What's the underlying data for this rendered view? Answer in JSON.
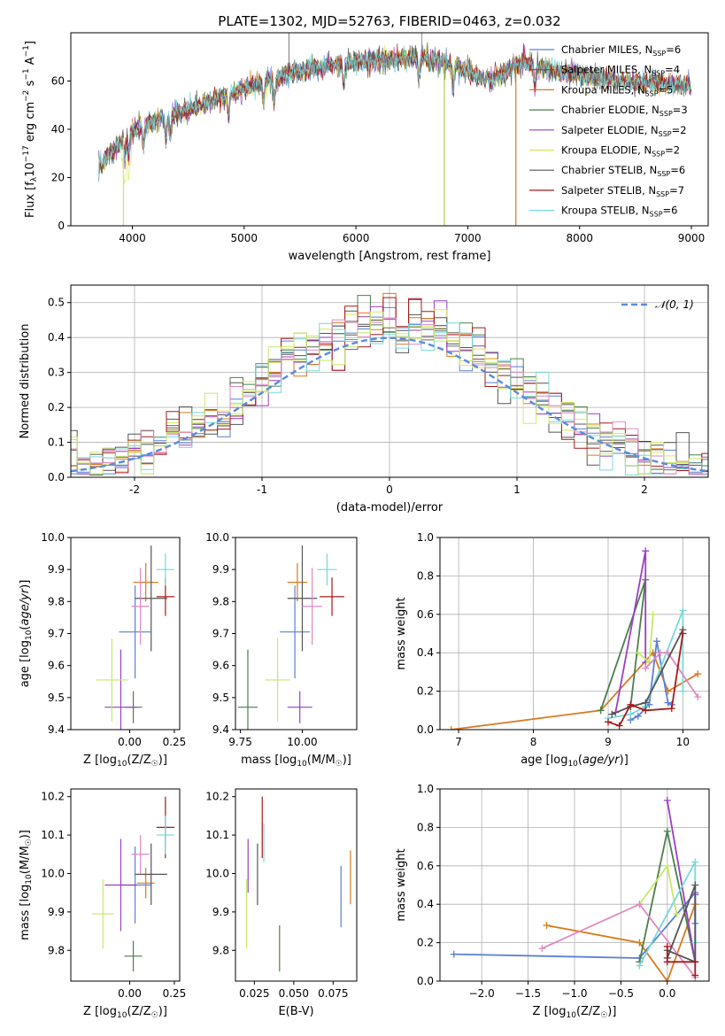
{
  "figure_title": "PLATE=1302, MJD=52763, FIBERID=0463, z=0.032",
  "models": [
    {
      "name": "Chabrier MILES",
      "nssp": "6",
      "color": "#5B7FD6"
    },
    {
      "name": "Salpeter MILES",
      "nssp": "4",
      "color": "#555555"
    },
    {
      "name": "Kroupa MILES",
      "nssp": "5",
      "color": "#D97A1E"
    },
    {
      "name": "Chabrier ELODIE",
      "nssp": "3",
      "color": "#4C7E4C"
    },
    {
      "name": "Salpeter ELODIE",
      "nssp": "2",
      "color": "#9B3FC0"
    },
    {
      "name": "Kroupa ELODIE",
      "nssp": "2",
      "color": "#D8E85C"
    },
    {
      "name": "Chabrier STELIB",
      "nssp": "6",
      "color": "#555555"
    },
    {
      "name": "Salpeter STELIB",
      "nssp": "7",
      "color": "#A81818"
    },
    {
      "name": "Kroupa STELIB",
      "nssp": "6",
      "color": "#76D9DD"
    }
  ],
  "extra_colors": {
    "pink": "#E088C0",
    "lightgreen": "#C7E86A"
  },
  "chart_data": [
    {
      "id": "spectrum",
      "type": "line",
      "xlabel": "wavelength [Angstrom, rest frame]",
      "ylabel": "Flux [f_λ 10^-17 erg cm^-2 s^-1 A^-1]",
      "xlim": [
        3450,
        9150
      ],
      "ylim": [
        0,
        80
      ],
      "xticks": [
        4000,
        5000,
        6000,
        7000,
        8000,
        9000
      ],
      "yticks": [
        0,
        20,
        40,
        60
      ],
      "grid": false,
      "legend": "right, inside",
      "continuum": {
        "x": [
          3700,
          3800,
          3950,
          4100,
          4300,
          4600,
          4900,
          5200,
          5500,
          5800,
          6000,
          6300,
          6600,
          6900,
          7200,
          7500,
          7800,
          8100,
          8400,
          8700,
          9000
        ],
        "y": [
          25,
          30,
          38,
          42,
          45,
          50,
          55,
          60,
          64,
          67,
          68,
          69,
          70,
          66,
          60,
          68,
          64,
          62,
          60,
          59,
          58
        ]
      },
      "dropouts": [
        {
          "x": 3920,
          "ymin": 0
        },
        {
          "x": 6790,
          "ymin": 0
        },
        {
          "x": 7430,
          "ymin": 0
        }
      ]
    },
    {
      "id": "residuals",
      "type": "step-histogram",
      "xlabel": "(data-model)/error",
      "ylabel": "Normed distribution",
      "xlim": [
        -2.5,
        2.5
      ],
      "ylim": [
        0,
        0.55
      ],
      "xticks": [
        -2,
        -1,
        0,
        1,
        2
      ],
      "yticks": [
        0.0,
        0.1,
        0.2,
        0.3,
        0.4,
        0.5
      ],
      "grid": true,
      "legend": "upper right",
      "bin_width": 0.1,
      "legend_label": "𝒩(0, 1)",
      "gaussian": {
        "mu": 0,
        "sigma": 1
      }
    },
    {
      "id": "Z_age",
      "type": "errorbar",
      "xlabel": "Z [log10(Z/Z☉)]",
      "ylabel": "age  [log10(age/yr)]",
      "xlim": [
        -0.33,
        0.28
      ],
      "ylim": [
        9.4,
        10.0
      ],
      "xticks": [
        0.0,
        0.25
      ],
      "xticklabels": [
        "0.00",
        "0.25"
      ],
      "yticks": [
        9.4,
        9.5,
        9.6,
        9.7,
        9.8,
        9.9,
        10.0
      ],
      "points": [
        {
          "c": "#5B7FD6",
          "x": 0.03,
          "xe": 0.09,
          "y": 9.705,
          "ye": 0.145
        },
        {
          "c": "#D97A1E",
          "x": 0.09,
          "xe": 0.07,
          "y": 9.86,
          "ye": 0.06
        },
        {
          "c": "#4C7E4C",
          "x": 0.02,
          "xe": 0.05,
          "y": 9.47,
          "ye": 0.05
        },
        {
          "c": "#9B3FC0",
          "x": -0.05,
          "xe": 0.09,
          "y": 9.47,
          "ye": 0.18
        },
        {
          "c": "#C7E86A",
          "x": -0.1,
          "xe": 0.09,
          "y": 9.555,
          "ye": 0.13
        },
        {
          "c": "#555555",
          "x": 0.12,
          "xe": 0.09,
          "y": 9.81,
          "ye": 0.165
        },
        {
          "c": "#A81818",
          "x": 0.2,
          "xe": 0.05,
          "y": 9.815,
          "ye": 0.06
        },
        {
          "c": "#76D9DD",
          "x": 0.2,
          "xe": 0.05,
          "y": 9.9,
          "ye": 0.05
        },
        {
          "c": "#E088C0",
          "x": 0.06,
          "xe": 0.05,
          "y": 9.785,
          "ye": 0.12
        }
      ]
    },
    {
      "id": "mass_age",
      "type": "errorbar",
      "xlabel": "mass [log10(M/M☉)]",
      "ylabel": "",
      "xlim": [
        9.73,
        10.22
      ],
      "ylim": [
        9.4,
        10.0
      ],
      "xticks": [
        9.75,
        10.0
      ],
      "xticklabels": [
        "9.75",
        "10.00"
      ],
      "yticks": [
        9.4,
        9.5,
        9.6,
        9.7,
        9.8,
        9.9,
        10.0
      ],
      "points": [
        {
          "c": "#5B7FD6",
          "x": 9.97,
          "xe": 0.06,
          "y": 9.705,
          "ye": 0.145
        },
        {
          "c": "#D97A1E",
          "x": 9.98,
          "xe": 0.04,
          "y": 9.86,
          "ye": 0.06
        },
        {
          "c": "#4C7E4C",
          "x": 9.78,
          "xe": 0.04,
          "y": 9.47,
          "ye": 0.18
        },
        {
          "c": "#9B3FC0",
          "x": 9.99,
          "xe": 0.05,
          "y": 9.47,
          "ye": 0.05
        },
        {
          "c": "#C7E86A",
          "x": 9.9,
          "xe": 0.05,
          "y": 9.555,
          "ye": 0.13
        },
        {
          "c": "#555555",
          "x": 10.0,
          "xe": 0.06,
          "y": 9.81,
          "ye": 0.165
        },
        {
          "c": "#A81818",
          "x": 10.12,
          "xe": 0.05,
          "y": 9.815,
          "ye": 0.06
        },
        {
          "c": "#76D9DD",
          "x": 10.1,
          "xe": 0.04,
          "y": 9.9,
          "ye": 0.05
        },
        {
          "c": "#E088C0",
          "x": 10.04,
          "xe": 0.04,
          "y": 9.785,
          "ye": 0.12
        }
      ]
    },
    {
      "id": "age_weight",
      "type": "line",
      "xlabel": "age  [log10(age/yr)]",
      "ylabel": "mass weight",
      "xlim": [
        6.75,
        10.35
      ],
      "ylim": [
        0,
        1
      ],
      "xticks": [
        7,
        8,
        9,
        10
      ],
      "yticks": [
        0.0,
        0.2,
        0.4,
        0.6,
        0.8,
        1.0
      ],
      "grid": true,
      "series": [
        {
          "c": "#D97A1E",
          "x": [
            6.9,
            8.9,
            9.6,
            9.8,
            10.2
          ],
          "y": [
            0.0,
            0.1,
            0.4,
            0.2,
            0.29
          ]
        },
        {
          "c": "#4C7E4C",
          "x": [
            8.9,
            9.5,
            9.3
          ],
          "y": [
            0.1,
            0.78,
            0.12
          ]
        },
        {
          "c": "#9B3FC0",
          "x": [
            9.1,
            9.5,
            9.5
          ],
          "y": [
            0.09,
            0.93,
            0.35
          ]
        },
        {
          "c": "#5B7FD6",
          "x": [
            9.3,
            9.4,
            9.55,
            9.65,
            9.8,
            9.85
          ],
          "y": [
            0.05,
            0.07,
            0.13,
            0.46,
            0.14,
            0.13
          ]
        },
        {
          "c": "#C7E86A",
          "x": [
            9.4,
            9.55,
            9.6
          ],
          "y": [
            0.4,
            0.35,
            0.6
          ]
        },
        {
          "c": "#76D9DD",
          "x": [
            9.0,
            9.3,
            9.5,
            10.0,
            10.0
          ],
          "y": [
            0.06,
            0.08,
            0.12,
            0.62,
            0.2
          ]
        },
        {
          "c": "#E088C0",
          "x": [
            9.5,
            9.7,
            9.8,
            10.2
          ],
          "y": [
            0.32,
            0.4,
            0.4,
            0.17
          ]
        },
        {
          "c": "#555555",
          "x": [
            9.05,
            9.3,
            9.5,
            10.0
          ],
          "y": [
            0.08,
            0.12,
            0.14,
            0.52
          ]
        },
        {
          "c": "#A81818",
          "x": [
            9.0,
            9.15,
            9.3,
            9.5,
            9.85,
            10.0
          ],
          "y": [
            0.04,
            0.02,
            0.13,
            0.1,
            0.11,
            0.5
          ]
        }
      ]
    },
    {
      "id": "Z_mass",
      "type": "errorbar",
      "xlabel": "Z [log10(Z/Z☉)]",
      "ylabel": "mass [log10(M/M☉)]",
      "xlim": [
        -0.33,
        0.28
      ],
      "ylim": [
        9.72,
        10.22
      ],
      "xticks": [
        0.0,
        0.25
      ],
      "xticklabels": [
        "0.00",
        "0.25"
      ],
      "yticks": [
        9.8,
        9.9,
        10.0,
        10.1,
        10.2
      ],
      "points": [
        {
          "c": "#5B7FD6",
          "x": 0.03,
          "xe": 0.09,
          "y": 9.97,
          "ye": 0.1
        },
        {
          "c": "#D97A1E",
          "x": 0.09,
          "xe": 0.05,
          "y": 9.975,
          "ye": 0.04
        },
        {
          "c": "#4C7E4C",
          "x": 0.02,
          "xe": 0.05,
          "y": 9.785,
          "ye": 0.04
        },
        {
          "c": "#9B3FC0",
          "x": -0.05,
          "xe": 0.09,
          "y": 9.97,
          "ye": 0.12
        },
        {
          "c": "#C7E86A",
          "x": -0.15,
          "xe": 0.06,
          "y": 9.895,
          "ye": 0.09
        },
        {
          "c": "#555555",
          "x": 0.12,
          "xe": 0.09,
          "y": 9.998,
          "ye": 0.08
        },
        {
          "c": "#A81818",
          "x": 0.2,
          "xe": 0.05,
          "y": 10.12,
          "ye": 0.08
        },
        {
          "c": "#76D9DD",
          "x": 0.2,
          "xe": 0.05,
          "y": 10.1,
          "ye": 0.05
        },
        {
          "c": "#E088C0",
          "x": 0.06,
          "xe": 0.05,
          "y": 10.05,
          "ye": 0.05
        }
      ]
    },
    {
      "id": "ebv_mass",
      "type": "errorbar",
      "xlabel": "E(B-V)",
      "ylabel": "",
      "xlim": [
        0.013,
        0.09
      ],
      "ylim": [
        9.72,
        10.22
      ],
      "xticks": [
        0.025,
        0.05,
        0.075
      ],
      "xticklabels": [
        "0.025",
        "0.050",
        "0.075"
      ],
      "yticks": [
        9.8,
        9.9,
        10.0,
        10.1,
        10.2
      ],
      "points": [
        {
          "c": "#5B7FD6",
          "x": 0.08,
          "xe": 0,
          "y": 9.94,
          "ye": 0.08
        },
        {
          "c": "#D97A1E",
          "x": 0.086,
          "xe": 0,
          "y": 9.99,
          "ye": 0.07
        },
        {
          "c": "#4C7E4C",
          "x": 0.041,
          "xe": 0,
          "y": 9.805,
          "ye": 0.06
        },
        {
          "c": "#9B3FC0",
          "x": 0.021,
          "xe": 0,
          "y": 10.02,
          "ye": 0.07
        },
        {
          "c": "#C7E86A",
          "x": 0.02,
          "xe": 0,
          "y": 9.895,
          "ye": 0.09
        },
        {
          "c": "#555555",
          "x": 0.027,
          "xe": 0,
          "y": 9.998,
          "ye": 0.08
        },
        {
          "c": "#A81818",
          "x": 0.03,
          "xe": 0,
          "y": 10.12,
          "ye": 0.08
        },
        {
          "c": "#76D9DD",
          "x": 0.031,
          "xe": 0,
          "y": 10.08,
          "ye": 0.05
        }
      ]
    },
    {
      "id": "Z_weight",
      "type": "line",
      "xlabel": "Z [log10(Z/Z☉)]",
      "ylabel": "mass weight",
      "xlim": [
        -2.45,
        0.45
      ],
      "ylim": [
        0,
        1
      ],
      "xticks": [
        -2.0,
        -1.5,
        -1.0,
        -0.5,
        0.0
      ],
      "xticklabels": [
        "−2.0",
        "−1.5",
        "−1.0",
        "−0.5",
        "0.0"
      ],
      "yticks": [
        0.0,
        0.2,
        0.4,
        0.6,
        0.8,
        1.0
      ],
      "grid": true,
      "series": [
        {
          "c": "#5B7FD6",
          "x": [
            -2.3,
            -0.3,
            0.3,
            0.3
          ],
          "y": [
            0.14,
            0.12,
            0.46,
            0.3
          ]
        },
        {
          "c": "#D97A1E",
          "x": [
            -1.3,
            -0.3,
            0.0,
            0.3
          ],
          "y": [
            0.29,
            0.2,
            0.0,
            0.4
          ]
        },
        {
          "c": "#4C7E4C",
          "x": [
            -0.3,
            0.0,
            0.3
          ],
          "y": [
            0.1,
            0.78,
            0.1
          ]
        },
        {
          "c": "#9B3FC0",
          "x": [
            0.0,
            0.3,
            0.3
          ],
          "y": [
            0.94,
            0.1,
            0.45
          ]
        },
        {
          "c": "#C7E86A",
          "x": [
            -0.3,
            0.0,
            0.1
          ],
          "y": [
            0.4,
            0.6,
            0.35
          ]
        },
        {
          "c": "#76D9DD",
          "x": [
            -0.3,
            0.3,
            0.3
          ],
          "y": [
            0.08,
            0.62,
            0.2
          ]
        },
        {
          "c": "#E088C0",
          "x": [
            -1.35,
            -0.3,
            0.3
          ],
          "y": [
            0.17,
            0.4,
            0.02
          ]
        },
        {
          "c": "#555555",
          "x": [
            0.0,
            0.3,
            0.3,
            0.0
          ],
          "y": [
            0.12,
            0.5,
            0.1,
            0.16
          ]
        },
        {
          "c": "#A81818",
          "x": [
            0.0,
            0.0,
            0.3,
            0.3
          ],
          "y": [
            0.18,
            0.1,
            0.1,
            0.03
          ]
        }
      ]
    }
  ]
}
